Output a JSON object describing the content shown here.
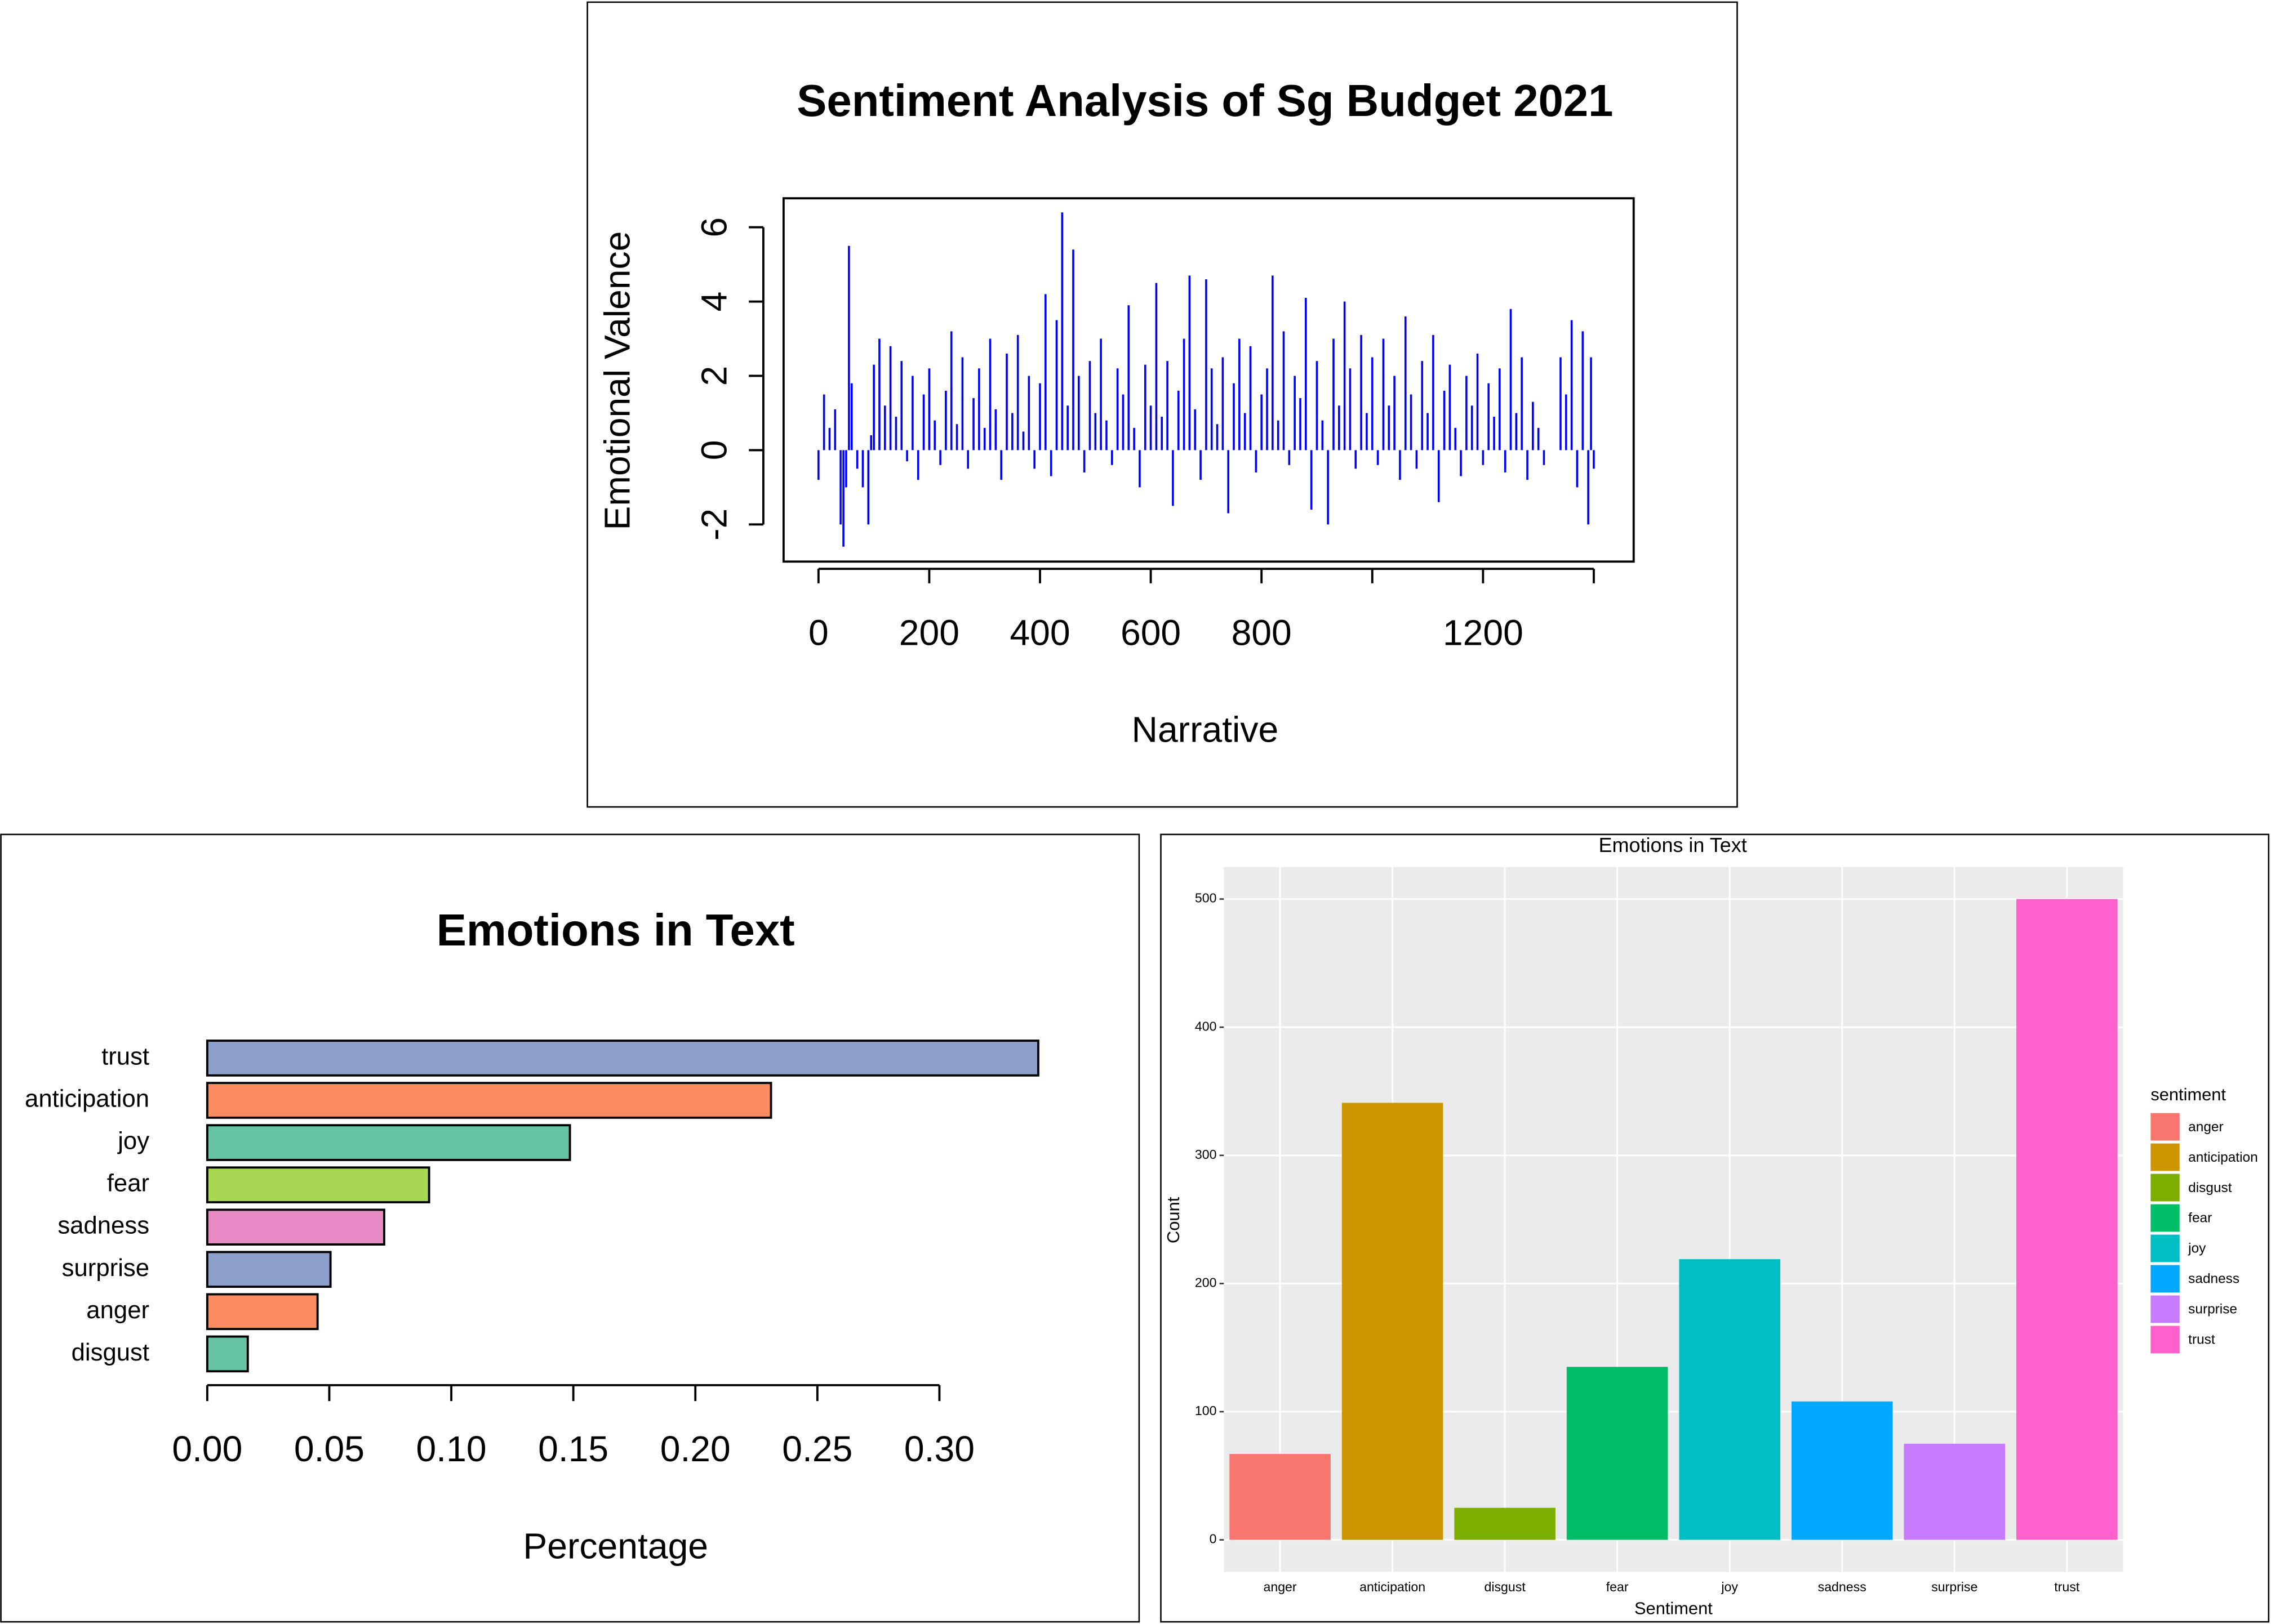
{
  "chart_data": [
    {
      "type": "spike",
      "title": "Sentiment Analysis of Sg Budget 2021",
      "x_label": "Narrative",
      "y_label": "Emotional Valence",
      "color": "#0000ff",
      "x": [
        0,
        10,
        20,
        30,
        40,
        45,
        50,
        55,
        60,
        70,
        80,
        90,
        95,
        100,
        110,
        120,
        130,
        140,
        150,
        160,
        170,
        180,
        190,
        200,
        210,
        220,
        230,
        240,
        250,
        260,
        270,
        280,
        290,
        300,
        310,
        320,
        330,
        340,
        350,
        360,
        370,
        380,
        390,
        400,
        410,
        420,
        430,
        440,
        450,
        460,
        470,
        480,
        490,
        500,
        510,
        520,
        530,
        540,
        550,
        560,
        570,
        580,
        590,
        600,
        610,
        620,
        630,
        640,
        650,
        660,
        670,
        680,
        690,
        700,
        710,
        720,
        730,
        740,
        750,
        760,
        770,
        780,
        790,
        800,
        810,
        820,
        830,
        840,
        850,
        860,
        870,
        880,
        890,
        900,
        910,
        920,
        930,
        940,
        950,
        960,
        970,
        980,
        990,
        1000,
        1010,
        1020,
        1030,
        1040,
        1050,
        1060,
        1070,
        1080,
        1090,
        1100,
        1110,
        1120,
        1130,
        1140,
        1150,
        1160,
        1170,
        1180,
        1190,
        1200,
        1210,
        1220,
        1230,
        1240,
        1250,
        1260,
        1270,
        1280,
        1290,
        1300,
        1310,
        1320,
        1330,
        1340,
        1350,
        1360,
        1370,
        1380,
        1390,
        1395,
        1400
      ],
      "values": [
        -0.8,
        1.5,
        0.6,
        1.1,
        -2.0,
        -2.6,
        -1.0,
        5.5,
        1.8,
        -0.5,
        -1.0,
        -2.0,
        0.4,
        2.3,
        3.0,
        1.2,
        2.8,
        0.9,
        2.4,
        -0.3,
        2.0,
        -0.8,
        1.5,
        2.2,
        0.8,
        -0.4,
        1.6,
        3.2,
        0.7,
        2.5,
        -0.5,
        1.4,
        2.2,
        0.6,
        3.0,
        1.1,
        -0.8,
        2.6,
        1.0,
        3.1,
        0.5,
        2.0,
        -0.5,
        1.8,
        4.2,
        -0.7,
        3.5,
        6.4,
        1.2,
        5.4,
        2.0,
        -0.6,
        2.4,
        1.0,
        3.0,
        0.8,
        -0.4,
        2.2,
        1.5,
        3.9,
        0.6,
        -1.0,
        2.3,
        1.2,
        4.5,
        0.9,
        2.4,
        -1.5,
        1.6,
        3.0,
        4.7,
        1.1,
        -0.8,
        4.6,
        2.2,
        0.7,
        2.5,
        -1.7,
        1.8,
        3.0,
        1.0,
        2.8,
        -0.6,
        1.5,
        2.2,
        4.7,
        0.8,
        3.2,
        -0.4,
        2.0,
        1.4,
        4.1,
        -1.6,
        2.4,
        0.8,
        -2.0,
        3.0,
        1.2,
        4.0,
        2.2,
        -0.5,
        3.1,
        1.0,
        2.5,
        -0.4,
        3.0,
        1.2,
        2.0,
        -0.8,
        3.6,
        1.5,
        -0.5,
        2.4,
        1.0,
        3.1,
        -1.4,
        1.6,
        2.3,
        0.6,
        -0.7,
        2.0,
        1.2,
        2.6,
        -0.4,
        1.8,
        0.9,
        2.2,
        -0.6,
        3.8,
        1.0,
        2.5,
        -0.8,
        1.3,
        0.6,
        -0.4,
        0,
        0,
        2.5,
        1.5,
        3.5,
        -1.0,
        3.2,
        -2.0,
        2.5,
        -0.5
      ],
      "xlim": [
        -63,
        1472
      ],
      "ylim": [
        -3,
        6.78
      ],
      "xticks": [
        0,
        200,
        400,
        600,
        800,
        {
          "value": 1000,
          "label": null
        },
        1200,
        {
          "value": 1400,
          "label": null
        }
      ],
      "yticks": [
        -2,
        0,
        2,
        4,
        6
      ]
    },
    {
      "type": "barh",
      "title": "Emotions in Text",
      "x_label": "Percentage",
      "categories": [
        "trust",
        "anticipation",
        "joy",
        "fear",
        "sadness",
        "surprise",
        "anger",
        "disgust"
      ],
      "values": [
        0.3405,
        0.231,
        0.1486,
        0.0909,
        0.0725,
        0.0505,
        0.0452,
        0.0166
      ],
      "colors": [
        "#8da0cb",
        "#fc8d62",
        "#66c2a5",
        "#a6d854",
        "#e78ac3",
        "#8da0cb",
        "#fc8d62",
        "#66c2a5"
      ],
      "xlim": [
        0,
        0.34
      ],
      "xticks": [
        {
          "value": 0,
          "label": "0.00"
        },
        {
          "value": 0.05,
          "label": "0.05"
        },
        {
          "value": 0.1,
          "label": "0.10"
        },
        {
          "value": 0.15,
          "label": "0.15"
        },
        {
          "value": 0.2,
          "label": "0.20"
        },
        {
          "value": 0.25,
          "label": "0.25"
        },
        {
          "value": 0.3,
          "label": "0.30"
        }
      ]
    },
    {
      "type": "bar",
      "title": "Emotions in Text",
      "x_label": "Sentiment",
      "y_label": "Count",
      "legend_title": "sentiment",
      "legend": "right",
      "grid": true,
      "categories": [
        "anger",
        "anticipation",
        "disgust",
        "fear",
        "joy",
        "sadness",
        "surprise",
        "trust"
      ],
      "values": [
        67,
        341,
        25,
        135,
        219,
        108,
        75,
        500
      ],
      "colors": [
        "#F8766D",
        "#CD9600",
        "#7CAE00",
        "#00BE67",
        "#00BFC4",
        "#00A9FF",
        "#C77CFF",
        "#FF61CC"
      ],
      "ylim": [
        -25,
        525
      ],
      "yticks": [
        0,
        100,
        200,
        300,
        400,
        500
      ]
    }
  ]
}
